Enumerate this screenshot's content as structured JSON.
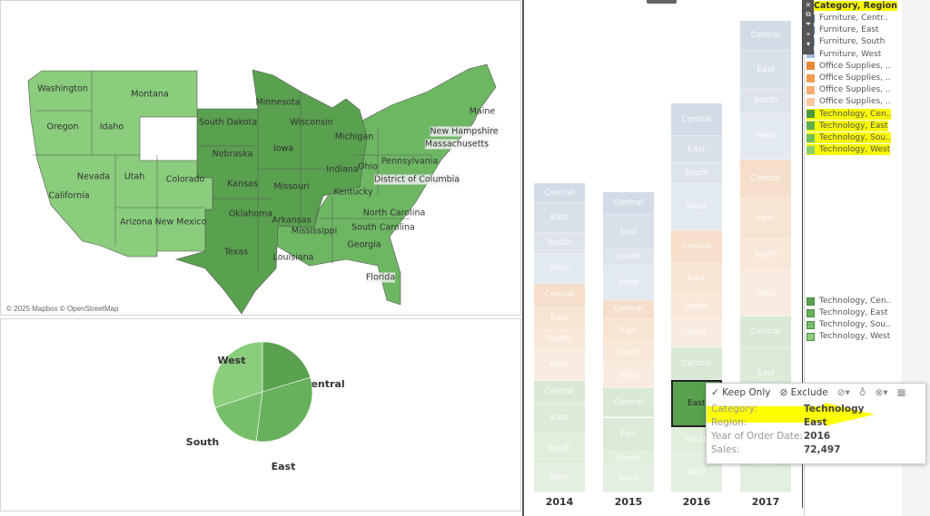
{
  "map": {
    "attribution": "© 2025 Mapbox © OpenStreetMap",
    "states": [
      "Washington",
      "Montana",
      "Oregon",
      "Idaho",
      "South Dakota",
      "Minnesota",
      "Wisconsin",
      "Michigan",
      "Iowa",
      "Nebraska",
      "Indiana",
      "Ohio",
      "Pennsylvania",
      "New Hampshire",
      "Massachusetts",
      "Maine",
      "Nevada",
      "Utah",
      "Colorado",
      "California",
      "Kansas",
      "Missouri",
      "Kentucky",
      "District of Columbia",
      "Oklahoma",
      "Arkansas",
      "Arizona",
      "New Mexico",
      "North Carolina",
      "South Carolina",
      "Mississippi",
      "Georgia",
      "Texas",
      "Louisiana",
      "Florida"
    ],
    "colors": {
      "west": "#8acd7c",
      "central": "#59a14f",
      "east": "#6db763"
    }
  },
  "pie": {
    "type": "pie",
    "slices": [
      {
        "label": "Central",
        "value": 170
      },
      {
        "label": "East",
        "value": 264
      },
      {
        "label": "South",
        "value": 149
      },
      {
        "label": "West",
        "value": 252
      }
    ],
    "colors": [
      "#59a14f",
      "#67b05c",
      "#77be6b",
      "#8acd7c"
    ]
  },
  "chart_data": {
    "type": "bar",
    "stacked": true,
    "categories": [
      "2014",
      "2015",
      "2016",
      "2017"
    ],
    "series_order": [
      "Furniture, Central",
      "Furniture, East",
      "Furniture, South",
      "Furniture, West",
      "Office Supplies, Central",
      "Office Supplies, East",
      "Office Supplies, South",
      "Office Supplies, West",
      "Technology, Central",
      "Technology, East",
      "Technology, South",
      "Technology, West"
    ],
    "segment_labels": [
      "Central",
      "East",
      "South",
      "West",
      "Central",
      "East",
      "South",
      "West",
      "Central",
      "East",
      "South",
      "West"
    ],
    "values_thousands": [
      [
        31,
        46,
        31,
        47,
        35,
        36,
        29,
        49,
        35,
        46,
        47,
        43
      ],
      [
        36,
        52,
        25,
        54,
        29,
        36,
        32,
        38,
        45,
        53,
        22,
        40
      ],
      [
        50,
        42,
        31,
        72,
        50,
        49,
        38,
        43,
        50,
        72.497,
        40,
        60
      ],
      [
        46,
        59,
        38,
        71,
        59,
        63,
        49,
        70,
        49,
        77,
        56,
        88
      ]
    ],
    "highlight": {
      "year": "2016",
      "series": "Technology, East"
    }
  },
  "legend": {
    "title": "Category, Region",
    "items": [
      "Furniture, Centr..",
      "Furniture, East",
      "Furniture, South",
      "Furniture, West",
      "Office Supplies, ..",
      "Office Supplies, ..",
      "Office Supplies, ..",
      "Office Supplies, ..",
      "Technology, Cen..",
      "Technology, East",
      "Technology, Sou..",
      "Technology, West"
    ],
    "colors": [
      "#4e79a7",
      "#5a86b5",
      "#7a9fc8",
      "#a0bcdc",
      "#e8873a",
      "#f09a4e",
      "#f4ae73",
      "#f8c79e",
      "#4e9a3f",
      "#5fae4f",
      "#6fc05a",
      "#8ccf70"
    ],
    "items2": [
      "Technology, Cen..",
      "Technology, East",
      "Technology, Sou..",
      "Technology, West"
    ],
    "colors2": [
      "#59a14f",
      "#67b05c",
      "#77be6b",
      "#8acd7c"
    ]
  },
  "tooltip": {
    "keep_only": "✓ Keep Only",
    "exclude": "⊘ Exclude",
    "rows": [
      {
        "k": "Category:",
        "v": "Technology"
      },
      {
        "k": "Region:",
        "v": "East"
      },
      {
        "k": "Year of Order Date:",
        "v": "2016"
      },
      {
        "k": "Sales:",
        "v": "72,497"
      }
    ]
  }
}
